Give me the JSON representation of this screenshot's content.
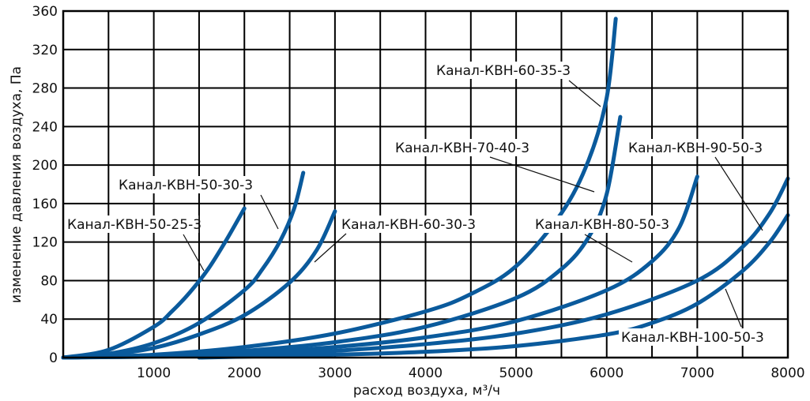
{
  "chart_data": {
    "type": "line",
    "title": "",
    "xlabel": "расход воздуха, м³/ч",
    "ylabel": "изменение давления воздуха, Па",
    "xlim": [
      0,
      8000
    ],
    "ylim": [
      0,
      360
    ],
    "x_ticks": [
      1000,
      2000,
      3000,
      4000,
      5000,
      6000,
      7000,
      8000
    ],
    "y_ticks": [
      0,
      40,
      80,
      120,
      160,
      200,
      240,
      280,
      320,
      360
    ],
    "grid": true,
    "legend": "inline labels",
    "line_color": "#0a5a9c",
    "series": [
      {
        "name": "Канал-КВН-50-25-3",
        "x": [
          0,
          500,
          1000,
          1200,
          1400,
          1600,
          1800,
          2000
        ],
        "y": [
          0,
          8,
          32,
          48,
          68,
          92,
          122,
          155
        ]
      },
      {
        "name": "Канал-КВН-50-30-3",
        "x": [
          0,
          500,
          1000,
          1500,
          2000,
          2200,
          2400,
          2550,
          2650
        ],
        "y": [
          0,
          4,
          15,
          36,
          70,
          92,
          122,
          155,
          192
        ]
      },
      {
        "name": "Канал-КВН-60-30-3",
        "x": [
          0,
          500,
          1000,
          1500,
          2000,
          2500,
          2800,
          3000
        ],
        "y": [
          0,
          3,
          10,
          24,
          44,
          78,
          112,
          152
        ]
      },
      {
        "name": "Канал-КВН-60-35-3",
        "x": [
          0,
          1000,
          2000,
          3000,
          4000,
          4500,
          5000,
          5500,
          5800,
          6000,
          6100
        ],
        "y": [
          0,
          3,
          11,
          25,
          48,
          66,
          95,
          150,
          205,
          270,
          352
        ]
      },
      {
        "name": "Канал-КВН-70-40-3",
        "x": [
          0,
          1000,
          2000,
          3000,
          4000,
          5000,
          5500,
          5800,
          6000,
          6150
        ],
        "y": [
          0,
          2,
          7,
          16,
          32,
          62,
          92,
          125,
          170,
          250
        ]
      },
      {
        "name": "Канал-КВН-80-50-3",
        "x": [
          0,
          1000,
          2000,
          3000,
          4000,
          5000,
          6000,
          6500,
          6800,
          7000
        ],
        "y": [
          0,
          2,
          5,
          11,
          21,
          38,
          70,
          100,
          135,
          188
        ]
      },
      {
        "name": "Канал-КВН-90-50-3",
        "x": [
          0,
          1000,
          2000,
          3000,
          4000,
          5000,
          6000,
          7000,
          7500,
          7800,
          8000
        ],
        "y": [
          0,
          1,
          3,
          7,
          14,
          25,
          45,
          80,
          115,
          150,
          186
        ]
      },
      {
        "name": "Канал-КВН-100-50-3",
        "x": [
          1500,
          2000,
          3000,
          4000,
          5000,
          6000,
          6500,
          7000,
          7500,
          7800,
          8000
        ],
        "y": [
          0,
          1,
          3,
          6,
          12,
          24,
          36,
          56,
          90,
          120,
          148
        ]
      }
    ]
  }
}
